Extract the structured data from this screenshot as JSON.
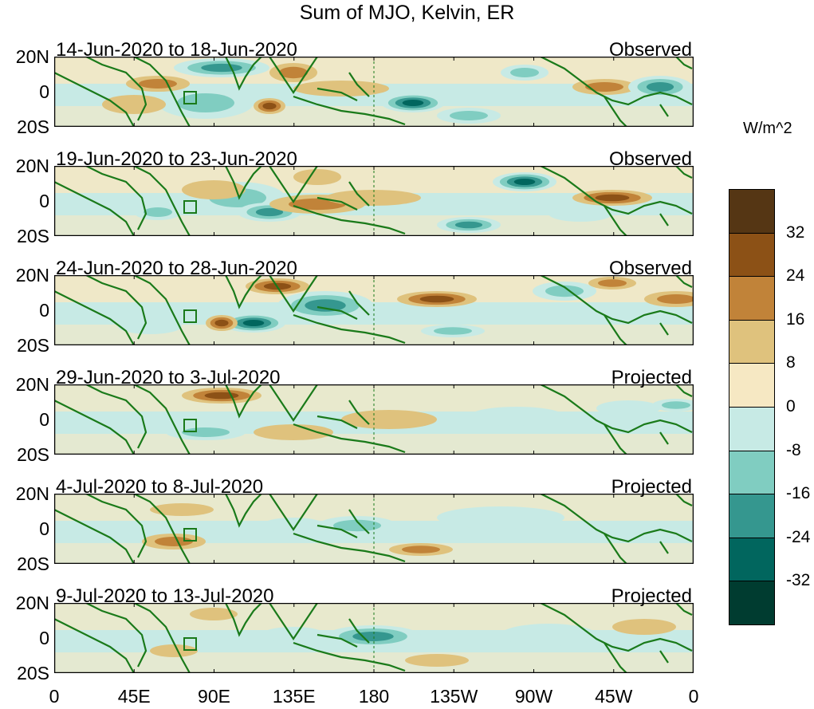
{
  "title": "Sum of MJO, Kelvin, ER",
  "units": "W/m^2",
  "lat_labels": [
    "20N",
    "0",
    "20S"
  ],
  "lon_labels": [
    "0",
    "45E",
    "90E",
    "135E",
    "180",
    "135W",
    "90W",
    "45W",
    "0"
  ],
  "panels": [
    {
      "date_range": "14-Jun-2020 to 18-Jun-2020",
      "status": "Observed"
    },
    {
      "date_range": "19-Jun-2020 to 23-Jun-2020",
      "status": "Observed"
    },
    {
      "date_range": "24-Jun-2020 to 28-Jun-2020",
      "status": "Observed"
    },
    {
      "date_range": "29-Jun-2020 to 3-Jul-2020",
      "status": "Projected"
    },
    {
      "date_range": "4-Jul-2020 to 8-Jul-2020",
      "status": "Projected"
    },
    {
      "date_range": "9-Jul-2020 to 13-Jul-2020",
      "status": "Projected"
    }
  ],
  "colorbar": {
    "labels": [
      "32",
      "24",
      "16",
      "8",
      "0",
      "-8",
      "-16",
      "-24",
      "-32"
    ],
    "colors": [
      "#553614",
      "#8c5116",
      "#c18339",
      "#dfc27d",
      "#f6e8c3",
      "#c7eae5",
      "#80cdc1",
      "#35978f",
      "#01665e",
      "#003c30"
    ]
  },
  "colors": {
    "land_outline": "#1a7a1a",
    "negative_fill": "#c7eae5",
    "positive_fill": "#f6e8c3"
  }
}
